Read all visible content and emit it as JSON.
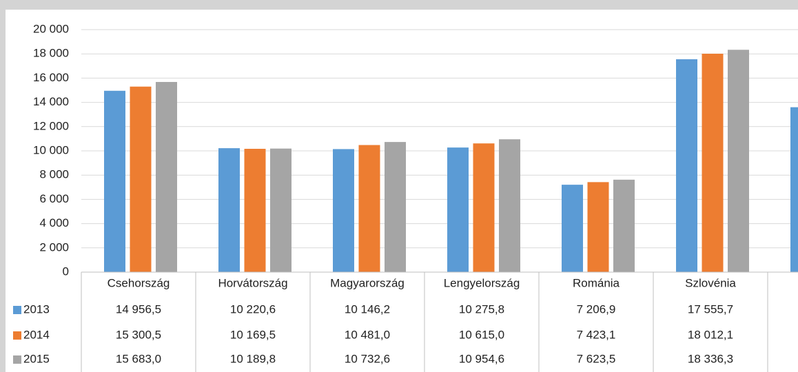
{
  "chart_data": {
    "type": "bar",
    "categories": [
      "Csehország",
      "Horvátország",
      "Magyarország",
      "Lengyelország",
      "Románia",
      "Szlovénia",
      null
    ],
    "series": [
      {
        "name": "2013",
        "color": "#5b9bd5",
        "values": [
          14956.5,
          10220.6,
          10146.2,
          10275.8,
          7206.9,
          17555.7,
          13600
        ],
        "value_labels": [
          "14 956,5",
          "10 220,6",
          "10 146,2",
          "10 275,8",
          "7 206,9",
          "17 555,7",
          null
        ]
      },
      {
        "name": "2014",
        "color": "#ed7d31",
        "values": [
          15300.5,
          10169.5,
          10481.0,
          10615.0,
          7423.1,
          18012.1,
          null
        ],
        "value_labels": [
          "15 300,5",
          "10 169,5",
          "10 481,0",
          "10 615,0",
          "7 423,1",
          "18 012,1",
          null
        ]
      },
      {
        "name": "2015",
        "color": "#a5a5a5",
        "values": [
          15683.0,
          10189.8,
          10732.6,
          10954.6,
          7623.5,
          18336.3,
          null
        ],
        "value_labels": [
          "15 683,0",
          "10 189,8",
          "10 732,6",
          "10 954,6",
          "7 623,5",
          "18 336,3",
          null
        ]
      }
    ],
    "ylim": [
      0,
      20000
    ],
    "yticks": [
      0,
      {
        "value": 2000,
        "label": "2 000"
      },
      {
        "value": 4000,
        "label": "4 000"
      },
      {
        "value": 6000,
        "label": "6 000"
      },
      {
        "value": 8000,
        "label": "8 000"
      },
      {
        "value": 10000,
        "label": "10 000"
      },
      {
        "value": 12000,
        "label": "12 000"
      },
      {
        "value": 14000,
        "label": "14 000"
      },
      {
        "value": 16000,
        "label": "16 000"
      },
      {
        "value": 18000,
        "label": "18 000"
      },
      {
        "value": 20000,
        "label": "20 000"
      }
    ],
    "grid": true,
    "data_table": true
  }
}
